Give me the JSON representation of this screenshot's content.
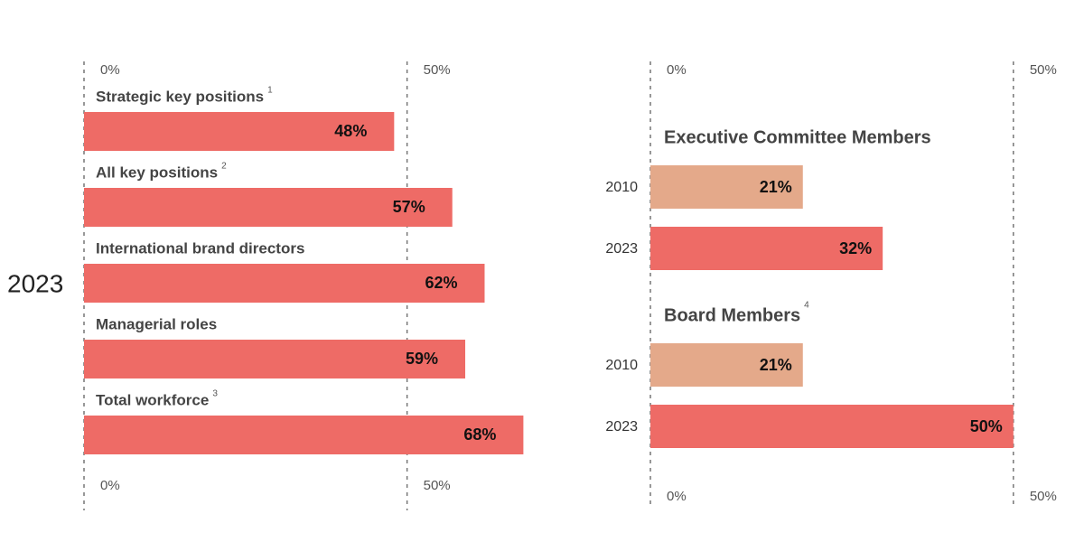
{
  "chart_data": [
    {
      "type": "bar",
      "group_label": "2023",
      "categories": [
        "Strategic key positions",
        "All key positions",
        "International brand directors",
        "Managerial roles",
        "Total workforce"
      ],
      "notes": [
        "1",
        "2",
        null,
        null,
        "3"
      ],
      "values": [
        48,
        57,
        62,
        59,
        68
      ],
      "value_labels": [
        "48%",
        "57%",
        "62%",
        "59%",
        "68%"
      ],
      "color": "#ee6b66",
      "xlim": [
        0,
        72
      ],
      "xticks": [
        {
          "value": 0,
          "label": "0%"
        },
        {
          "value": 50,
          "label": "50%"
        }
      ]
    },
    {
      "type": "groupedbar",
      "groups": [
        {
          "name": "Executive Committee Members",
          "note": null,
          "categories": [
            "2010",
            "2023"
          ],
          "values": [
            21,
            32
          ],
          "value_labels": [
            "21%",
            "32%"
          ],
          "colors": [
            "#e4a98a",
            "#ee6b66"
          ]
        },
        {
          "name": "Board Members",
          "note": "4",
          "categories": [
            "2010",
            "2023"
          ],
          "values": [
            21,
            50
          ],
          "value_labels": [
            "21%",
            "50%"
          ],
          "colors": [
            "#e4a98a",
            "#ee6b66"
          ]
        }
      ],
      "xlim": [
        0,
        55
      ],
      "xticks": [
        {
          "value": 0,
          "label": "0%"
        },
        {
          "value": 50,
          "label": "50%"
        }
      ]
    }
  ]
}
